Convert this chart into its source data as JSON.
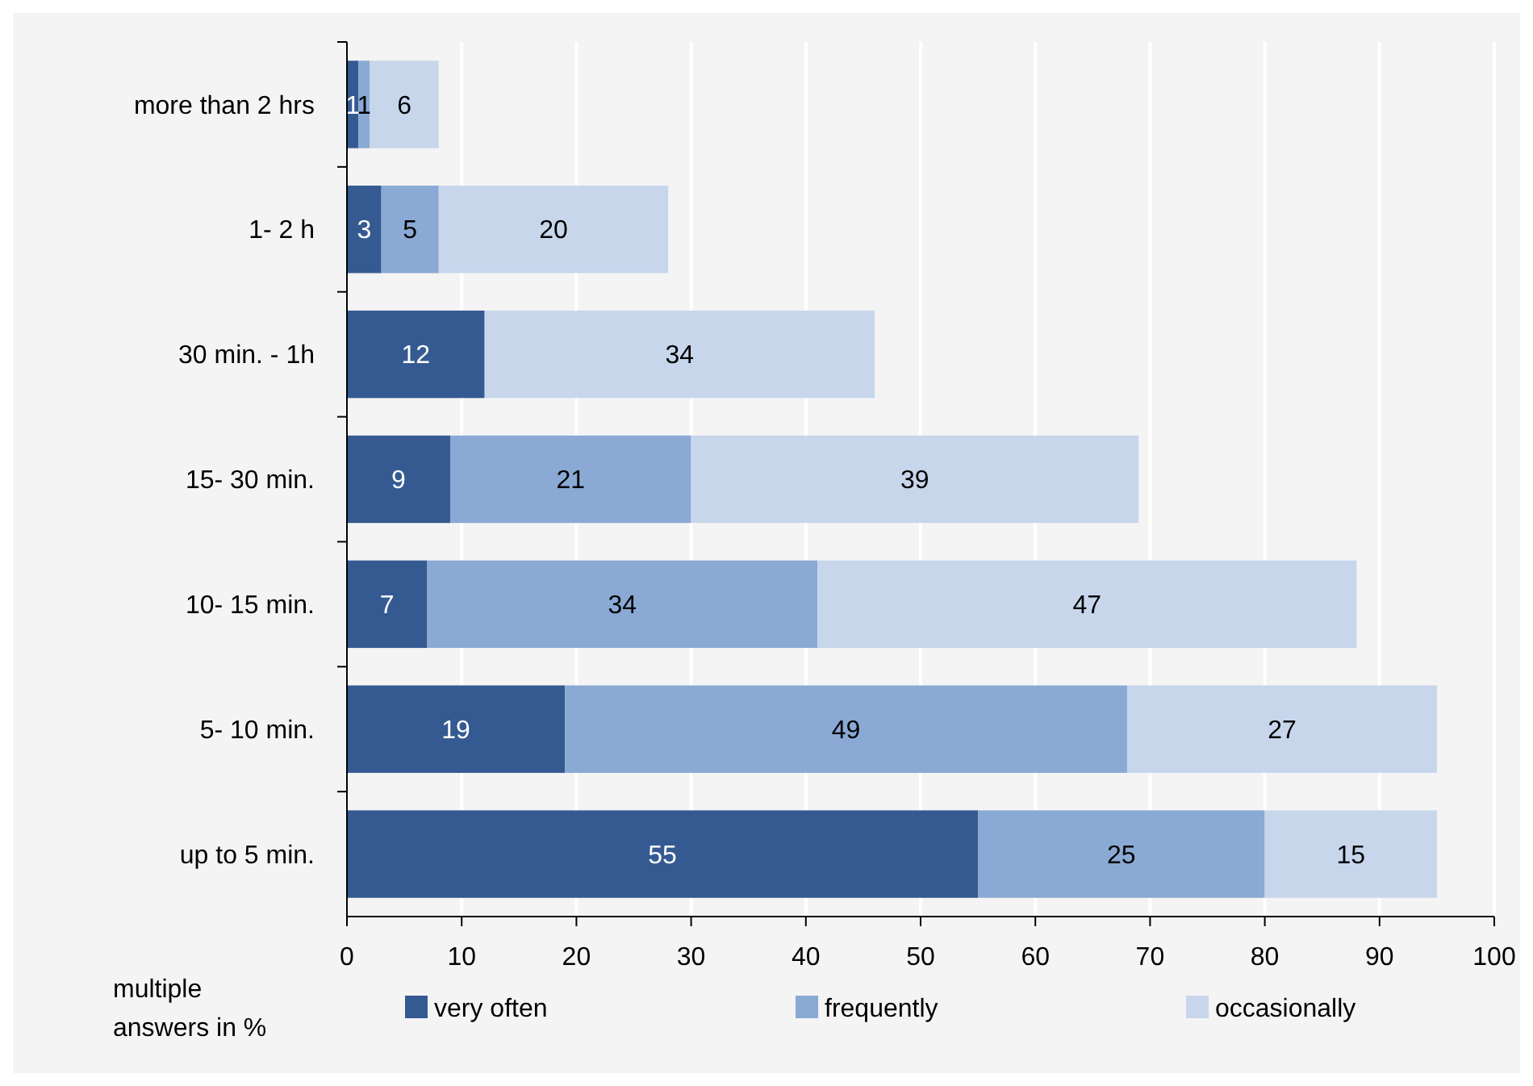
{
  "chart_data": {
    "type": "bar",
    "orientation": "horizontal",
    "stacked": true,
    "categories": [
      "more than 2 hrs",
      "1- 2 h",
      "30 min. - 1h",
      "15- 30 min.",
      "10- 15 min.",
      "5- 10 min.",
      "up to 5 min."
    ],
    "series": [
      {
        "name": "very often",
        "color": "#355a91",
        "values": [
          1,
          3,
          12,
          9,
          7,
          19,
          55
        ],
        "value_labels": [
          "1",
          "3",
          "12",
          "9",
          "7",
          "19",
          "55"
        ]
      },
      {
        "name": "frequently",
        "color": "#8aa9d4",
        "values": [
          1,
          5,
          0,
          21,
          34,
          49,
          25
        ],
        "value_labels": [
          "1",
          "5",
          null,
          "21",
          "34",
          "49",
          "25"
        ]
      },
      {
        "name": "occasionally",
        "color": "#c8d6ec",
        "values": [
          6,
          20,
          34,
          39,
          47,
          27,
          15
        ],
        "value_labels": [
          "6",
          "20",
          "34",
          "39",
          "47",
          "27",
          "15"
        ]
      }
    ],
    "xlim": [
      0,
      100
    ],
    "xticks": [
      0,
      10,
      20,
      30,
      40,
      50,
      60,
      70,
      80,
      90,
      100
    ],
    "grid": "x",
    "legend": "bottom",
    "annotations": [
      "multiple answers in %"
    ]
  }
}
